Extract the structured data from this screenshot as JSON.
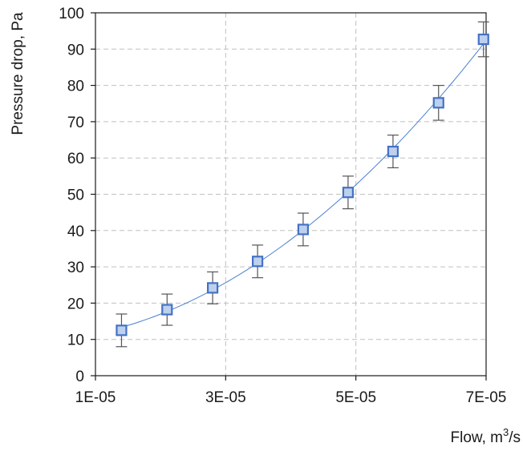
{
  "chart_data": {
    "type": "scatter",
    "xlabel_prefix": "Flow, m",
    "xlabel_sup": "3",
    "xlabel_suffix": "/s",
    "ylabel": "Pressure drop, Pa",
    "xlim": [
      1e-05,
      7e-05
    ],
    "ylim": [
      0,
      100
    ],
    "x_tick_labels": [
      "1E-05",
      "3E-05",
      "5E-05",
      "7E-05"
    ],
    "x_ticks": [
      1e-05,
      3e-05,
      5e-05,
      7e-05
    ],
    "y_ticks": [
      0,
      10,
      20,
      30,
      40,
      50,
      60,
      70,
      80,
      90,
      100
    ],
    "grid": true,
    "series": [
      {
        "marker": "square",
        "x": [
          1.4e-05,
          2.1e-05,
          2.8e-05,
          3.49e-05,
          4.19e-05,
          4.88e-05,
          5.57e-05,
          6.27e-05,
          6.96e-05
        ],
        "y": [
          12.5,
          18.2,
          24.2,
          31.5,
          40.3,
          50.5,
          61.8,
          75.2,
          92.7
        ],
        "error": [
          4.5,
          4.3,
          4.4,
          4.5,
          4.5,
          4.5,
          4.5,
          4.8,
          4.8
        ],
        "color": "#4472c4",
        "fit": "polynomial"
      }
    ],
    "colors": {
      "marker_fill": "#bdd0ee",
      "marker_stroke": "#4472c4",
      "trend": "#4a7fd0",
      "error_bar": "#555555",
      "grid": "#c0c0c0",
      "axis": "#1a1a1a"
    }
  }
}
